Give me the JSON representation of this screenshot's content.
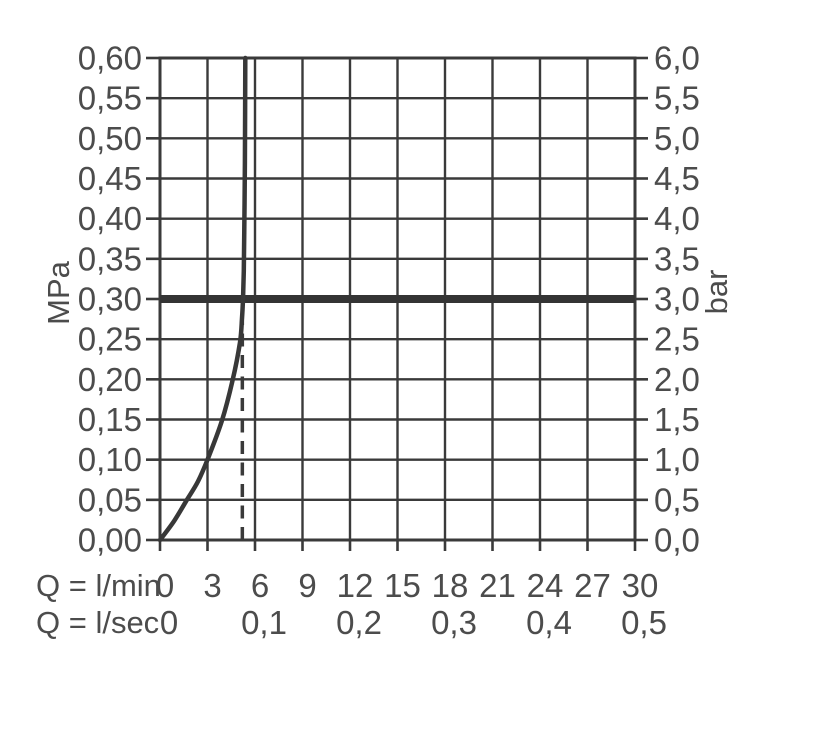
{
  "page": {
    "background": "#ffffff",
    "description": "Flow rate / pressure performance diagram with flow limiter"
  },
  "chart_data": {
    "type": "line",
    "title": "",
    "grid": true,
    "legend": "none",
    "colors": {
      "line": "#3a3a3a",
      "curve": "#383838",
      "reference_line": "#343434",
      "text": "#4c4c4c",
      "background": "#ffffff"
    },
    "y_left_axis": {
      "unit": "MPa",
      "min": 0,
      "max": 0.6,
      "step": 0.05,
      "tick_labels": [
        "0,60",
        "0,55",
        "0,50",
        "0,45",
        "0,40",
        "0,35",
        "0,30",
        "0,25",
        "0,20",
        "0,15",
        "0,10",
        "0,05",
        "0,00"
      ]
    },
    "y_right_axis": {
      "unit": "bar",
      "min": 0,
      "max": 6,
      "step": 0.5,
      "tick_labels": [
        "6,0",
        "5,5",
        "5,0",
        "4,5",
        "4,0",
        "3,5",
        "3,0",
        "2,5",
        "2,0",
        "1,5",
        "1,0",
        "0,5",
        "0,0"
      ]
    },
    "x_axis_lmin": {
      "label": "Q = l/min",
      "min": 0,
      "max": 30,
      "step": 3,
      "tick_labels": [
        "0",
        "3",
        "6",
        "9",
        "12",
        "15",
        "18",
        "21",
        "24",
        "27",
        "30"
      ]
    },
    "x_axis_lsec": {
      "label": "Q = l/sec",
      "ticks": [
        {
          "label": "0",
          "lmin": 0
        },
        {
          "label": "0,1",
          "lmin": 6
        },
        {
          "label": "0,2",
          "lmin": 12
        },
        {
          "label": "0,3",
          "lmin": 18
        },
        {
          "label": "0,4",
          "lmin": 24
        },
        {
          "label": "0,5",
          "lmin": 30
        }
      ]
    },
    "series": [
      {
        "name": "flow-characteristic-curve",
        "points_lmin_mpa": [
          [
            0,
            0.0
          ],
          [
            0.9,
            0.024
          ],
          [
            1.7,
            0.05
          ],
          [
            2.4,
            0.073
          ],
          [
            3.0,
            0.1
          ],
          [
            3.9,
            0.148
          ],
          [
            4.6,
            0.2
          ],
          [
            5.05,
            0.246
          ],
          [
            5.18,
            0.276
          ],
          [
            5.24,
            0.3
          ],
          [
            5.29,
            0.335
          ],
          [
            5.33,
            0.4
          ],
          [
            5.36,
            0.47
          ],
          [
            5.39,
            0.6
          ]
        ]
      }
    ],
    "reference_line": {
      "mpa": 0.3,
      "bar": 3.0
    },
    "marker_line": {
      "lmin": 5.2,
      "from_mpa": 0,
      "to_mpa": 0.272,
      "style": "dashed"
    }
  }
}
